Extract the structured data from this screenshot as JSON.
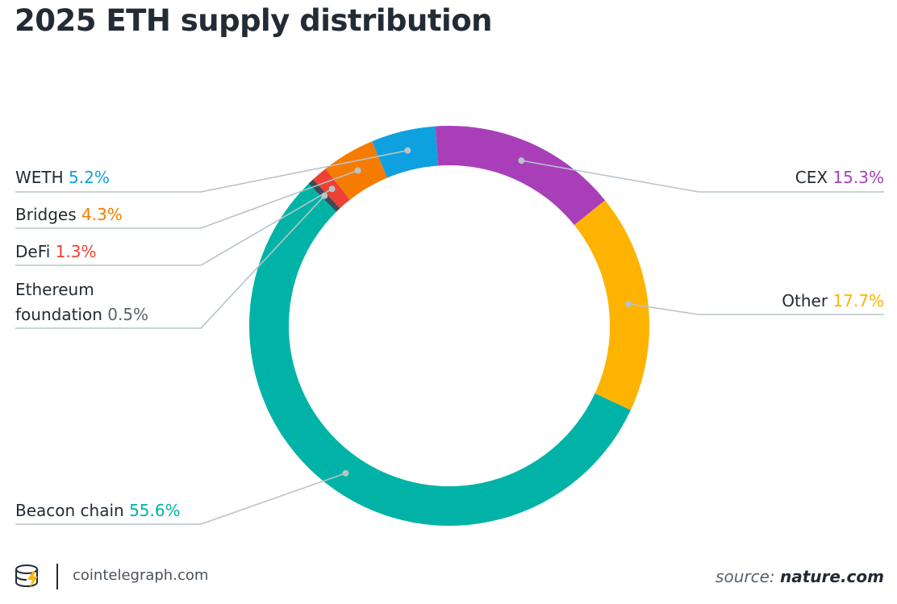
{
  "header": {
    "title": "2025 ETH supply distribution"
  },
  "chart_data": {
    "type": "pie",
    "style": "donut",
    "title": "2025 ETH supply distribution",
    "slices": [
      {
        "name": "CEX",
        "value": 15.3,
        "label": "15.3%",
        "color": "#a83fb9"
      },
      {
        "name": "Other",
        "value": 17.7,
        "label": "17.7%",
        "color": "#fdb300"
      },
      {
        "name": "Beacon chain",
        "value": 55.6,
        "label": "55.6%",
        "color": "#00b3a6"
      },
      {
        "name": "Ethereum foundation",
        "value": 0.5,
        "label": "0.5%",
        "color": "#3d4a55"
      },
      {
        "name": "DeFi",
        "value": 1.3,
        "label": "1.3%",
        "color": "#ee4035"
      },
      {
        "name": "Bridges",
        "value": 4.3,
        "label": "4.3%",
        "color": "#f57c00"
      },
      {
        "name": "WETH",
        "value": 5.2,
        "label": "5.2%",
        "color": "#0fa0e0"
      }
    ],
    "leader_line_color": "#b8c3ca"
  },
  "footer": {
    "site": "cointelegraph.com",
    "source_prefix": "source:",
    "source_name": "nature.com"
  },
  "icons": {
    "logo": "cointelegraph-logo-icon"
  }
}
